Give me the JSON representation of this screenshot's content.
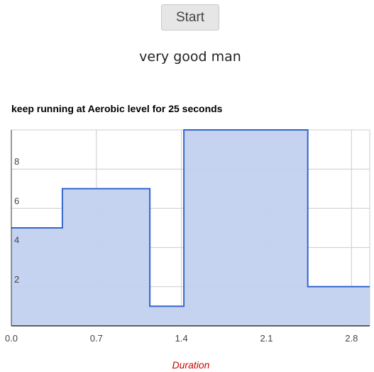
{
  "header": {
    "start_label": "Start",
    "status_text": "very good man"
  },
  "colors": {
    "area_fill": "#c2d1f0",
    "line": "#3366cc",
    "gridline": "#cccccc",
    "axis_title": "#cc0000"
  },
  "chart_data": {
    "type": "area",
    "title": "keep running at Aerobic level for 25 seconds",
    "xlabel": "Duration",
    "ylabel": "",
    "step": true,
    "xlim": [
      0,
      2.95
    ],
    "ylim": [
      0,
      10
    ],
    "x_ticks": [
      "0.0",
      "0.7",
      "1.4",
      "2.1",
      "2.8"
    ],
    "y_ticks": [
      "2",
      "4",
      "6",
      "8"
    ],
    "series": [
      {
        "points": [
          {
            "x": 0,
            "y": 5
          },
          {
            "x": 0.42,
            "y": 5
          },
          {
            "x": 0.42,
            "y": 7
          },
          {
            "x": 1.14,
            "y": 7
          },
          {
            "x": 1.14,
            "y": 1
          },
          {
            "x": 1.42,
            "y": 1
          },
          {
            "x": 1.42,
            "y": 10
          },
          {
            "x": 2.44,
            "y": 10
          },
          {
            "x": 2.44,
            "y": 2
          },
          {
            "x": 2.95,
            "y": 2
          }
        ]
      }
    ],
    "grid": true,
    "legend": "none"
  }
}
